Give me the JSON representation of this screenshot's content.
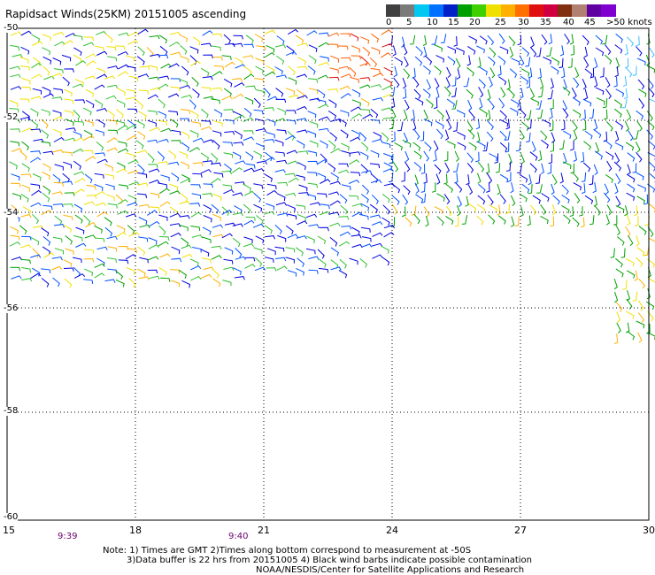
{
  "title": "Rapidsact Winds(25KM) 20151005 ascending",
  "colorbar": {
    "labels": [
      "0",
      "5",
      "10",
      "15",
      "20",
      "25",
      "30",
      "35",
      "40",
      "45",
      ">50 knots"
    ],
    "colors": [
      "#404040",
      "#7a7a7a",
      "#00c8f0",
      "#0070ff",
      "#0020c8",
      "#00a000",
      "#40d000",
      "#f0e000",
      "#ffb000",
      "#ff7000",
      "#e01010",
      "#d00040",
      "#803010",
      "#b08070",
      "#6000a0",
      "#8000d0"
    ]
  },
  "axes": {
    "x_ticks": [
      "15",
      "18",
      "21",
      "24",
      "27",
      "30"
    ],
    "y_ticks": [
      "-50",
      "-52",
      "-54",
      "-56",
      "-58",
      "-60"
    ]
  },
  "times": [
    "9:39",
    "9:40"
  ],
  "notes": {
    "line1": "Note: 1) Times are GMT 2)Times along bottom correspond to measurement at -50S",
    "line2": "3)Data buffer is 22 hrs from 20151005 4) Black wind barbs indicate possible contamination",
    "line3": "NOAA/NESDIS/Center for Satellite Applications and Research"
  },
  "wind_colors": [
    "#0000e0",
    "#0050ff",
    "#00a000",
    "#30c030",
    "#f0e000",
    "#ffb000",
    "#ff6000",
    "#e01010",
    "#40c0ff"
  ]
}
